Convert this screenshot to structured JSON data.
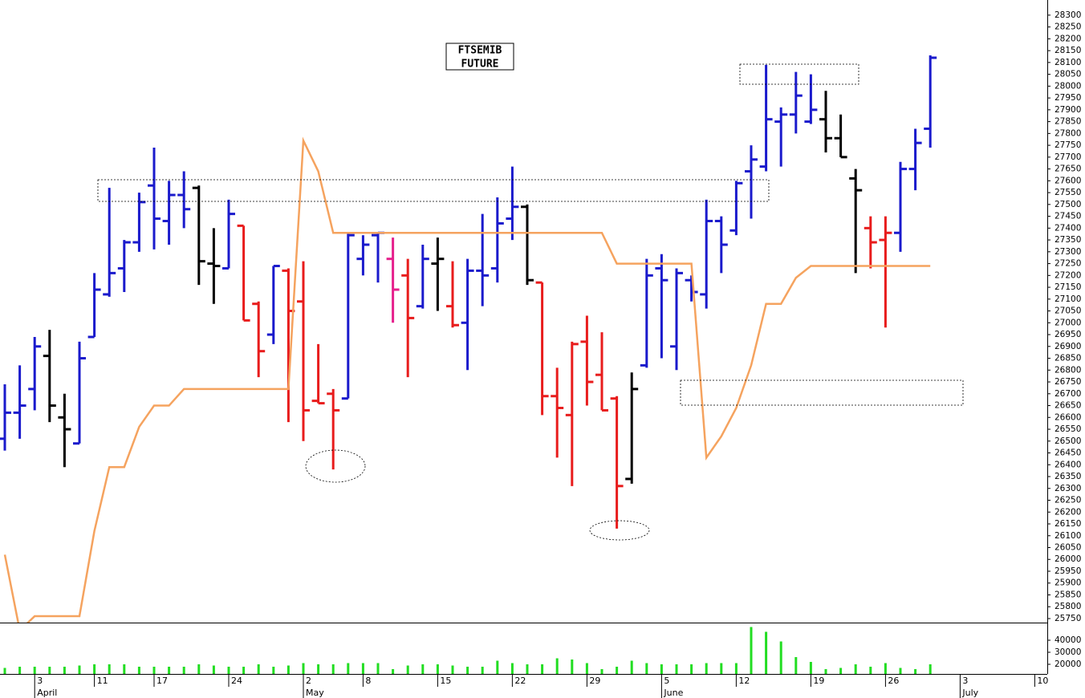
{
  "chart_data": {
    "type": "ohlc",
    "title_lines": [
      "FTSEMIB",
      "FUTURE"
    ],
    "categories": [
      null,
      null,
      "3",
      null,
      null,
      null,
      "11",
      null,
      null,
      null,
      "17",
      null,
      null,
      null,
      null,
      "24",
      null,
      null,
      null,
      null,
      "2",
      null,
      null,
      null,
      "8",
      null,
      null,
      null,
      null,
      "15",
      null,
      null,
      null,
      null,
      "22",
      null,
      null,
      null,
      null,
      "29",
      null,
      null,
      null,
      null,
      "5",
      null,
      null,
      null,
      null,
      "12",
      null,
      null,
      null,
      null,
      "19",
      null,
      null,
      null,
      null,
      "26",
      null,
      null,
      null,
      null,
      "3",
      null,
      null,
      null,
      null,
      "10"
    ],
    "months": [
      null,
      null,
      "April",
      null,
      null,
      null,
      null,
      null,
      null,
      null,
      null,
      null,
      null,
      null,
      null,
      null,
      null,
      null,
      null,
      null,
      "May",
      null,
      null,
      null,
      null,
      null,
      null,
      null,
      null,
      null,
      null,
      null,
      null,
      null,
      null,
      null,
      null,
      null,
      null,
      null,
      null,
      null,
      null,
      null,
      "June",
      null,
      null,
      null,
      null,
      null,
      null,
      null,
      null,
      null,
      null,
      null,
      null,
      null,
      null,
      null,
      null,
      null,
      null,
      null,
      "July",
      null,
      null,
      null,
      null,
      null
    ],
    "open": [
      26510,
      26620,
      26720,
      26860,
      26600,
      26490,
      26940,
      27120,
      27230,
      27340,
      27580,
      27430,
      27540,
      27570,
      27250,
      27230,
      27410,
      27080,
      26950,
      27220,
      27090,
      26670,
      26700,
      26680,
      27270,
      27370,
      27270,
      27200,
      27070,
      27250,
      27070,
      27000,
      27220,
      27230,
      27440,
      27490,
      27170,
      26690,
      26610,
      26920,
      26780,
      26680,
      26340,
      26820,
      27230,
      26900,
      27180,
      27120,
      27430,
      27390,
      27640,
      27660,
      27850,
      27880,
      27850,
      27860,
      27780,
      27610,
      27400,
      27350,
      27380,
      27650,
      27820,
      null,
      null,
      null,
      null,
      null,
      null,
      null
    ],
    "high": [
      26740,
      26820,
      26940,
      26970,
      26700,
      26920,
      27210,
      27570,
      27350,
      27550,
      27740,
      27600,
      27640,
      27580,
      27400,
      27520,
      27410,
      27090,
      27240,
      27230,
      27260,
      26910,
      26720,
      27380,
      27370,
      27380,
      27360,
      27270,
      27330,
      27360,
      27260,
      27270,
      27460,
      27530,
      27660,
      27500,
      27170,
      26810,
      26920,
      27030,
      26960,
      26690,
      26790,
      27270,
      27290,
      27230,
      27200,
      27520,
      27450,
      27600,
      27750,
      28090,
      27910,
      28060,
      28050,
      27980,
      27880,
      27650,
      27450,
      27450,
      27680,
      27820,
      28130,
      null,
      null,
      null,
      null,
      null,
      null,
      null
    ],
    "low": [
      26460,
      26510,
      26630,
      26580,
      26390,
      26490,
      26940,
      27110,
      27130,
      27300,
      27310,
      27330,
      27400,
      27160,
      27080,
      27230,
      27010,
      26770,
      26910,
      26580,
      26500,
      26660,
      26380,
      26680,
      27200,
      27170,
      27000,
      26770,
      27060,
      27050,
      26980,
      26800,
      27070,
      27170,
      27350,
      27160,
      26610,
      26430,
      26310,
      26650,
      26630,
      26130,
      26320,
      26810,
      26850,
      26800,
      27090,
      27060,
      27210,
      27370,
      27440,
      27640,
      27660,
      27800,
      27840,
      27720,
      27700,
      27210,
      27230,
      26980,
      27300,
      27560,
      27740,
      null,
      null,
      null,
      null,
      null,
      null,
      null
    ],
    "close": [
      26620,
      26650,
      26900,
      26650,
      26550,
      26850,
      27140,
      27210,
      27340,
      27510,
      27440,
      27540,
      27480,
      27260,
      27240,
      27460,
      27010,
      26880,
      27240,
      27050,
      26630,
      26660,
      26630,
      27370,
      27330,
      27380,
      27140,
      27020,
      27270,
      27270,
      26990,
      27220,
      27200,
      27420,
      27490,
      27180,
      26690,
      26640,
      26910,
      26750,
      26630,
      26310,
      26720,
      27200,
      27180,
      27210,
      27130,
      27430,
      27330,
      27590,
      27690,
      27860,
      27880,
      27960,
      27900,
      27780,
      27700,
      27560,
      27340,
      27380,
      27650,
      27760,
      28120,
      null,
      null,
      null,
      null,
      null,
      null,
      null
    ],
    "colors": [
      "#1a1acc",
      "#1a1acc",
      "#1a1acc",
      "#000000",
      "#000000",
      "#1a1acc",
      "#1a1acc",
      "#1a1acc",
      "#1a1acc",
      "#1a1acc",
      "#1a1acc",
      "#1a1acc",
      "#1a1acc",
      "#000000",
      "#000000",
      "#1a1acc",
      "#e81c1c",
      "#e81c1c",
      "#1a1acc",
      "#e81c1c",
      "#e81c1c",
      "#e81c1c",
      "#e81c1c",
      "#1a1acc",
      "#1a1acc",
      "#1a1acc",
      "#e6208c",
      "#e81c1c",
      "#1a1acc",
      "#000000",
      "#e81c1c",
      "#1a1acc",
      "#1a1acc",
      "#1a1acc",
      "#1a1acc",
      "#000000",
      "#e81c1c",
      "#e81c1c",
      "#e81c1c",
      "#e81c1c",
      "#e81c1c",
      "#e81c1c",
      "#000000",
      "#1a1acc",
      "#1a1acc",
      "#1a1acc",
      "#1a1acc",
      "#1a1acc",
      "#1a1acc",
      "#1a1acc",
      "#1a1acc",
      "#1a1acc",
      "#1a1acc",
      "#1a1acc",
      "#1a1acc",
      "#000000",
      "#000000",
      "#000000",
      "#e81c1c",
      "#e81c1c",
      "#1a1acc",
      "#1a1acc",
      "#1a1acc",
      null,
      null,
      null,
      null,
      null,
      null,
      null
    ],
    "stop_line": {
      "color": "#f5a35f",
      "values": [
        26020,
        25700,
        25760,
        25760,
        25760,
        25760,
        26120,
        26390,
        26390,
        26560,
        26650,
        26650,
        26720,
        26720,
        26720,
        26720,
        26720,
        26720,
        26720,
        26720,
        27770,
        27640,
        27380,
        27380,
        27380,
        27380,
        27380,
        27380,
        27380,
        27380,
        27380,
        27380,
        27380,
        27380,
        27380,
        27380,
        27380,
        27380,
        27380,
        27380,
        27380,
        27250,
        27250,
        27250,
        27250,
        27250,
        27250,
        26430,
        26520,
        26640,
        26820,
        27080,
        27080,
        27190,
        27240,
        27240,
        27240,
        27240,
        27240,
        27240,
        27240,
        27240,
        27240,
        null,
        null,
        null,
        null,
        null,
        null,
        null
      ]
    },
    "ylim": [
      25733,
      28364
    ],
    "yticks": [
      25750,
      25800,
      25850,
      25900,
      25950,
      26000,
      26050,
      26100,
      26150,
      26200,
      26250,
      26300,
      26350,
      26400,
      26450,
      26500,
      26550,
      26600,
      26650,
      26700,
      26750,
      26800,
      26850,
      26900,
      26950,
      27000,
      27050,
      27100,
      27150,
      27200,
      27250,
      27300,
      27350,
      27400,
      27450,
      27500,
      27550,
      27600,
      27650,
      27700,
      27750,
      27800,
      27850,
      27900,
      27950,
      28000,
      28050,
      28100,
      28150,
      28200,
      28250,
      28300
    ],
    "volume": {
      "color": "#22dd22",
      "ylim": [
        12000,
        54000
      ],
      "yticks": [
        20000,
        30000,
        40000
      ],
      "values": [
        17000,
        18000,
        18000,
        18000,
        18000,
        19000,
        20000,
        20000,
        20000,
        18000,
        18000,
        18000,
        18000,
        20000,
        19000,
        18000,
        18000,
        20000,
        18000,
        19000,
        21000,
        20000,
        20000,
        21000,
        21000,
        21000,
        16000,
        19000,
        20000,
        20000,
        19000,
        18000,
        18000,
        23000,
        21000,
        20000,
        20000,
        25000,
        24000,
        21000,
        16000,
        18000,
        23000,
        21000,
        20000,
        20000,
        20000,
        21000,
        21000,
        21000,
        51000,
        47000,
        39000,
        26000,
        22000,
        16000,
        17000,
        20000,
        18000,
        21000,
        17000,
        16000,
        20000,
        null,
        null,
        null,
        null,
        null,
        null,
        null
      ]
    }
  }
}
